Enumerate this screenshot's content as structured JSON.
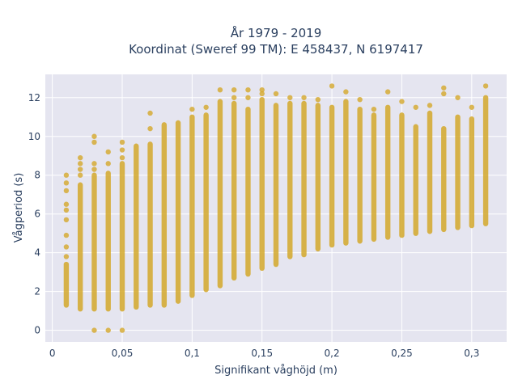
{
  "chart_data": {
    "type": "scatter",
    "title_line1": "År 1979 - 2019",
    "title_line2": "Koordinat (Sweref 99 TM): E 458437, N 6197417",
    "xlabel": "Signifikant våghöjd (m)",
    "ylabel": "Vågperiod (s)",
    "xlim": [
      -0.005,
      0.325
    ],
    "ylim": [
      -0.6,
      13.2
    ],
    "x_ticks": [
      0,
      0.05,
      0.1,
      0.15,
      0.2,
      0.25,
      0.3
    ],
    "x_tick_labels": [
      "0",
      "0,05",
      "0,1",
      "0,15",
      "0,2",
      "0,25",
      "0,3"
    ],
    "y_ticks": [
      0,
      2,
      4,
      6,
      8,
      10,
      12
    ],
    "y_tick_labels": [
      "0",
      "2",
      "4",
      "6",
      "8",
      "10",
      "12"
    ],
    "grid": true,
    "colors": {
      "marker": "#d4a82a",
      "plot_bg": "#e5e5f0",
      "grid": "#ffffff",
      "text": "#2a3f5f"
    },
    "columns": [
      {
        "x": 0.01,
        "min": 1.3,
        "max": 3.4,
        "extra": [
          3.8,
          4.3,
          4.9,
          5.7,
          6.2,
          6.5,
          7.2,
          7.6,
          8.0
        ]
      },
      {
        "x": 0.02,
        "min": 1.1,
        "max": 7.5,
        "extra": [
          8.0,
          8.3,
          8.6,
          8.9
        ]
      },
      {
        "x": 0.03,
        "min": 1.1,
        "max": 8.0,
        "extra": [
          0.0,
          8.3,
          8.6,
          9.7,
          10.0
        ]
      },
      {
        "x": 0.04,
        "min": 1.1,
        "max": 8.1,
        "extra": [
          0.0,
          8.6,
          9.2
        ]
      },
      {
        "x": 0.05,
        "min": 1.1,
        "max": 8.6,
        "extra": [
          0.0,
          8.9,
          9.3,
          9.7
        ]
      },
      {
        "x": 0.06,
        "min": 1.2,
        "max": 9.5,
        "extra": []
      },
      {
        "x": 0.07,
        "min": 1.3,
        "max": 9.6,
        "extra": [
          10.4,
          11.2
        ]
      },
      {
        "x": 0.08,
        "min": 1.3,
        "max": 10.6,
        "extra": []
      },
      {
        "x": 0.09,
        "min": 1.5,
        "max": 10.7,
        "extra": []
      },
      {
        "x": 0.1,
        "min": 1.8,
        "max": 11.0,
        "extra": [
          11.4
        ]
      },
      {
        "x": 0.11,
        "min": 2.1,
        "max": 11.1,
        "extra": [
          11.5
        ]
      },
      {
        "x": 0.12,
        "min": 2.3,
        "max": 11.8,
        "extra": [
          12.4
        ]
      },
      {
        "x": 0.13,
        "min": 2.7,
        "max": 11.7,
        "extra": [
          12.0,
          12.4
        ]
      },
      {
        "x": 0.14,
        "min": 2.9,
        "max": 11.4,
        "extra": [
          12.0,
          12.4
        ]
      },
      {
        "x": 0.15,
        "min": 3.2,
        "max": 11.9,
        "extra": [
          12.2,
          12.4
        ]
      },
      {
        "x": 0.16,
        "min": 3.4,
        "max": 11.6,
        "extra": [
          12.2
        ]
      },
      {
        "x": 0.17,
        "min": 3.8,
        "max": 11.7,
        "extra": [
          12.0
        ]
      },
      {
        "x": 0.18,
        "min": 3.9,
        "max": 11.7,
        "extra": [
          12.0
        ]
      },
      {
        "x": 0.19,
        "min": 4.2,
        "max": 11.6,
        "extra": [
          11.9
        ]
      },
      {
        "x": 0.2,
        "min": 4.4,
        "max": 11.5,
        "extra": [
          12.6
        ]
      },
      {
        "x": 0.21,
        "min": 4.5,
        "max": 11.8,
        "extra": [
          12.3
        ]
      },
      {
        "x": 0.22,
        "min": 4.6,
        "max": 11.4,
        "extra": [
          11.9
        ]
      },
      {
        "x": 0.23,
        "min": 4.7,
        "max": 11.1,
        "extra": [
          11.4
        ]
      },
      {
        "x": 0.24,
        "min": 4.8,
        "max": 11.5,
        "extra": [
          12.3
        ]
      },
      {
        "x": 0.25,
        "min": 4.9,
        "max": 11.1,
        "extra": [
          11.8
        ]
      },
      {
        "x": 0.26,
        "min": 5.0,
        "max": 10.5,
        "extra": [
          11.5
        ]
      },
      {
        "x": 0.27,
        "min": 5.1,
        "max": 11.2,
        "extra": [
          11.6
        ]
      },
      {
        "x": 0.28,
        "min": 5.2,
        "max": 10.4,
        "extra": [
          12.2,
          12.5
        ]
      },
      {
        "x": 0.29,
        "min": 5.3,
        "max": 11.0,
        "extra": [
          12.0
        ]
      },
      {
        "x": 0.3,
        "min": 5.4,
        "max": 10.9,
        "extra": [
          11.5
        ]
      },
      {
        "x": 0.31,
        "min": 5.5,
        "max": 12.0,
        "extra": [
          12.6
        ]
      }
    ]
  }
}
